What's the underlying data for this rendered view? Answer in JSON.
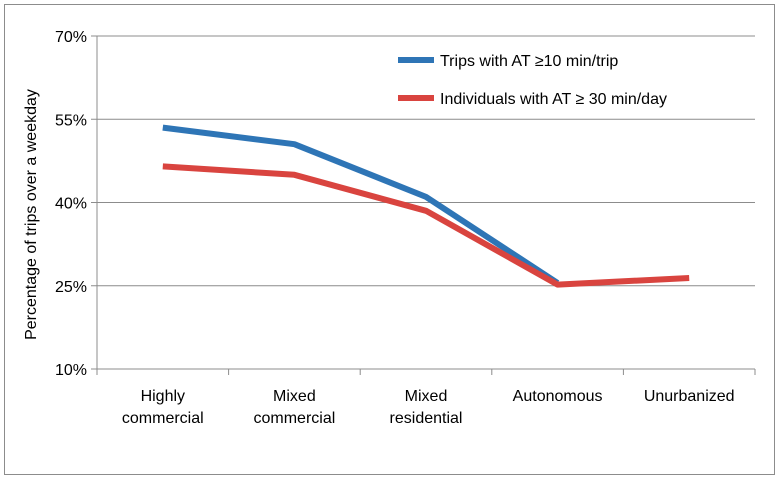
{
  "chart_data": {
    "type": "line",
    "title": "",
    "xlabel": "",
    "ylabel": "Percentage of trips over a weekday",
    "categories": [
      [
        "Highly",
        "commercial"
      ],
      [
        "Mixed",
        "commercial"
      ],
      [
        "Mixed",
        "residential"
      ],
      [
        "Autonomous"
      ],
      [
        "Unurbanized"
      ]
    ],
    "ylim": [
      10,
      70
    ],
    "yticks": [
      10,
      25,
      40,
      55,
      70
    ],
    "ytick_labels": [
      "10%",
      "25%",
      "40%",
      "55%",
      "70%"
    ],
    "grid": true,
    "legend_position": "top-right",
    "series": [
      {
        "name": "Trips with AT ≥10 min/trip",
        "color": "#2e75b6",
        "values": [
          53.5,
          50.5,
          41.0,
          25.5,
          null
        ]
      },
      {
        "name": "Individuals with AT ≥ 30 min/day",
        "color": "#d9443f",
        "values": [
          46.5,
          45.0,
          38.5,
          25.2,
          26.4
        ]
      }
    ]
  }
}
